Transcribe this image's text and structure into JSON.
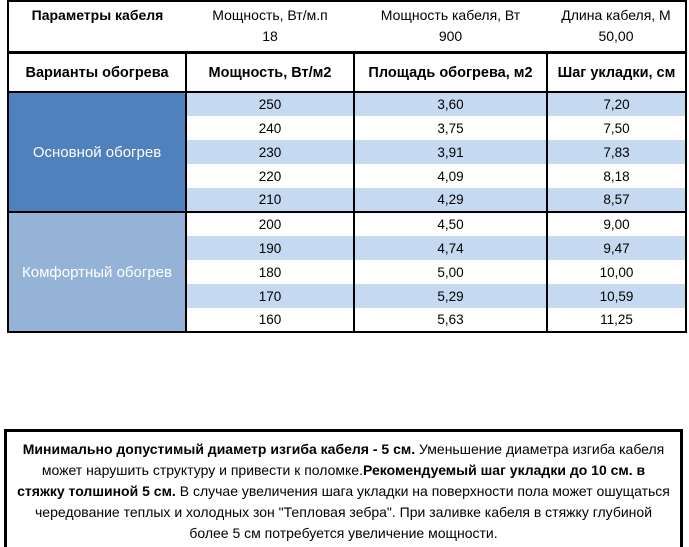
{
  "params_table": {
    "title": "Параметры кабеля",
    "columns": [
      {
        "label": "Мощность, Вт/м.п",
        "value": "18"
      },
      {
        "label": "Мощность кабеля, Вт",
        "value": "900"
      },
      {
        "label": "Длина кабеля, М",
        "value": "50,00"
      }
    ]
  },
  "heating_table": {
    "headers": [
      "Варианты обогрева",
      "Мощность, Вт/м2",
      "Площадь обогрева, м2",
      "Шаг укладки, см"
    ],
    "sections": [
      {
        "label": "Основной обогрев",
        "rows": [
          [
            "250",
            "3,60",
            "7,20"
          ],
          [
            "240",
            "3,75",
            "7,50"
          ],
          [
            "230",
            "3,91",
            "7,83"
          ],
          [
            "220",
            "4,09",
            "8,18"
          ],
          [
            "210",
            "4,29",
            "8,57"
          ]
        ]
      },
      {
        "label": "Комфортный обогрев",
        "rows": [
          [
            "200",
            "4,50",
            "9,00"
          ],
          [
            "190",
            "4,74",
            "9,47"
          ],
          [
            "180",
            "5,00",
            "10,00"
          ],
          [
            "170",
            "5,29",
            "10,59"
          ],
          [
            "160",
            "5,63",
            "11,25"
          ]
        ]
      }
    ]
  },
  "note": {
    "segments": [
      {
        "text": "Минимально допустимый диаметр изгиба кабеля - 5 см.",
        "bold": true
      },
      {
        "text": "  Уменьшение диаметра изгиба кабеля может нарушить структуру и привести к поломке.",
        "bold": false
      },
      {
        "text": "Рекомендуемый шаг укладки до 10 см. в стяжку толшиной 5 см.",
        "bold": true
      },
      {
        "text": " В  случае увеличения шага укладки на поверхности пола может ошущаться чередование теплых и холодных зон \"Тепловая зебра\". При заливке кабеля в стяжку глубиной более 5 см потребуется увеличение мощности.",
        "bold": false
      }
    ]
  },
  "colors": {
    "section_primary": "#4F81BD",
    "section_comfort": "#95B3D7",
    "row_band": "#C5D9F1",
    "row_plain": "#FFFFFF",
    "section_text": "#FFFFFF",
    "border": "#000000"
  }
}
